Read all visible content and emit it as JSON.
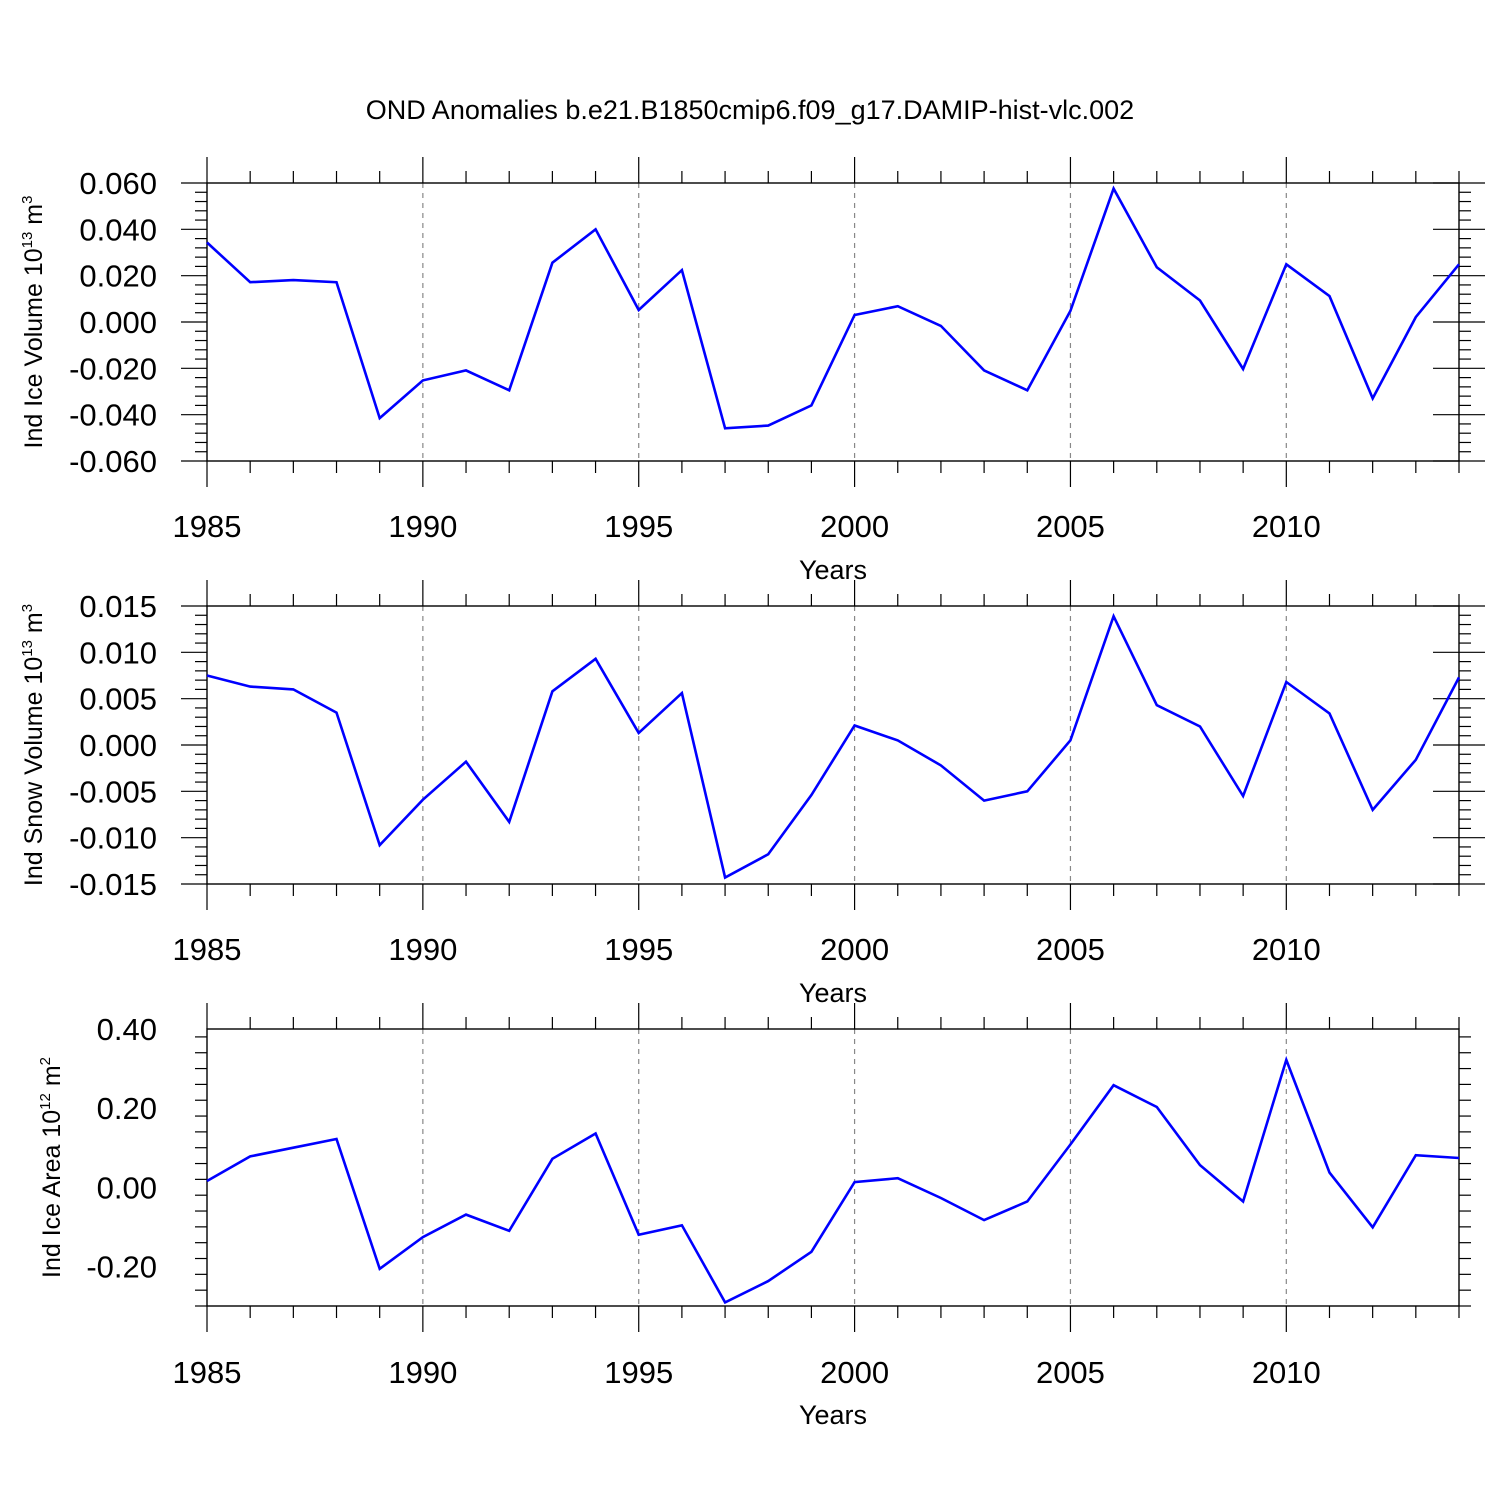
{
  "title": "OND Anomalies b.e21.B1850cmip6.f09_g17.DAMIP-hist-vlc.002",
  "line_color": "#0000ff",
  "chart_data": [
    {
      "type": "line",
      "ylabel": {
        "text": "Ind Ice Volume 10",
        "exp": "13",
        "unit": " m",
        "unit_exp": "3"
      },
      "xlabel": "Years",
      "xlim": [
        1985,
        2014
      ],
      "ylim": [
        -0.06,
        0.06
      ],
      "yticks": [
        -0.06,
        -0.04,
        -0.02,
        0.0,
        0.02,
        0.04,
        0.06
      ],
      "ytick_labels": [
        "-0.060",
        "-0.040",
        "-0.020",
        "0.000",
        "0.020",
        "0.040",
        "0.060"
      ],
      "xticks": [
        1985,
        1990,
        1995,
        2000,
        2005,
        2010
      ],
      "xtick_labels": [
        "1985",
        "1990",
        "1995",
        "2000",
        "2005",
        "2010"
      ],
      "grid": "dashed vertical at major x ticks",
      "x": [
        1985,
        1986,
        1987,
        1988,
        1989,
        1990,
        1991,
        1992,
        1993,
        1994,
        1995,
        1996,
        1997,
        1998,
        1999,
        2000,
        2001,
        2002,
        2003,
        2004,
        2005,
        2006,
        2007,
        2008,
        2009,
        2010,
        2011,
        2012,
        2013,
        2014
      ],
      "y": [
        0.0343,
        0.0172,
        0.0181,
        0.0172,
        -0.0415,
        -0.0252,
        -0.0209,
        -0.0295,
        0.0256,
        0.04,
        0.0052,
        0.0224,
        -0.0459,
        -0.0447,
        -0.036,
        0.003,
        0.0068,
        -0.0017,
        -0.0209,
        -0.0295,
        0.0048,
        0.0576,
        0.0236,
        0.0093,
        -0.0203,
        0.0249,
        0.0112,
        -0.033,
        0.0021,
        0.0249
      ]
    },
    {
      "type": "line",
      "ylabel": {
        "text": "Ind Snow Volume 10",
        "exp": "13",
        "unit": " m",
        "unit_exp": "3"
      },
      "xlabel": "Years",
      "xlim": [
        1985,
        2014
      ],
      "ylim": [
        -0.015,
        0.015
      ],
      "yticks": [
        -0.015,
        -0.01,
        -0.005,
        0.0,
        0.005,
        0.01,
        0.015
      ],
      "ytick_labels": [
        "-0.015",
        "-0.010",
        "-0.005",
        "0.000",
        "0.005",
        "0.010",
        "0.015"
      ],
      "xticks": [
        1985,
        1990,
        1995,
        2000,
        2005,
        2010
      ],
      "xtick_labels": [
        "1985",
        "1990",
        "1995",
        "2000",
        "2005",
        "2010"
      ],
      "grid": "dashed vertical at major x ticks",
      "x": [
        1985,
        1986,
        1987,
        1988,
        1989,
        1990,
        1991,
        1992,
        1993,
        1994,
        1995,
        1996,
        1997,
        1998,
        1999,
        2000,
        2001,
        2002,
        2003,
        2004,
        2005,
        2006,
        2007,
        2008,
        2009,
        2010,
        2011,
        2012,
        2013,
        2014
      ],
      "y": [
        0.0075,
        0.0063,
        0.006,
        0.0035,
        -0.0108,
        -0.0059,
        -0.0018,
        -0.0083,
        0.0058,
        0.0093,
        0.0013,
        0.0056,
        -0.0143,
        -0.0118,
        -0.0054,
        0.0021,
        0.0005,
        -0.0022,
        -0.006,
        -0.005,
        0.0005,
        0.0139,
        0.0043,
        0.002,
        -0.0055,
        0.0068,
        0.0034,
        -0.007,
        -0.0016,
        0.0073
      ]
    },
    {
      "type": "line",
      "ylabel": {
        "text": "Ind Ice Area 10",
        "exp": "12",
        "unit": " m",
        "unit_exp": "2"
      },
      "xlabel": "Years",
      "xlim": [
        1985,
        2014
      ],
      "ylim": [
        -0.3,
        0.4
      ],
      "yticks": [
        -0.2,
        0.0,
        0.2,
        0.4
      ],
      "ytick_labels": [
        "-0.20",
        "0.00",
        "0.20",
        "0.40"
      ],
      "xticks": [
        1985,
        1990,
        1995,
        2000,
        2005,
        2010
      ],
      "xtick_labels": [
        "1985",
        "1990",
        "1995",
        "2000",
        "2005",
        "2010"
      ],
      "grid": "dashed vertical at major x ticks",
      "x": [
        1985,
        1986,
        1987,
        1988,
        1989,
        1990,
        1991,
        1992,
        1993,
        1994,
        1995,
        1996,
        1997,
        1998,
        1999,
        2000,
        2001,
        2002,
        2003,
        2004,
        2005,
        2006,
        2007,
        2008,
        2009,
        2010,
        2011,
        2012,
        2013,
        2014
      ],
      "y": [
        0.016,
        0.078,
        0.1,
        0.122,
        -0.206,
        -0.126,
        -0.069,
        -0.11,
        0.072,
        0.136,
        -0.12,
        -0.096,
        -0.291,
        -0.237,
        -0.163,
        0.013,
        0.023,
        -0.027,
        -0.083,
        -0.036,
        0.108,
        0.258,
        0.203,
        0.056,
        -0.036,
        0.322,
        0.037,
        -0.101,
        0.081,
        0.074
      ]
    }
  ]
}
